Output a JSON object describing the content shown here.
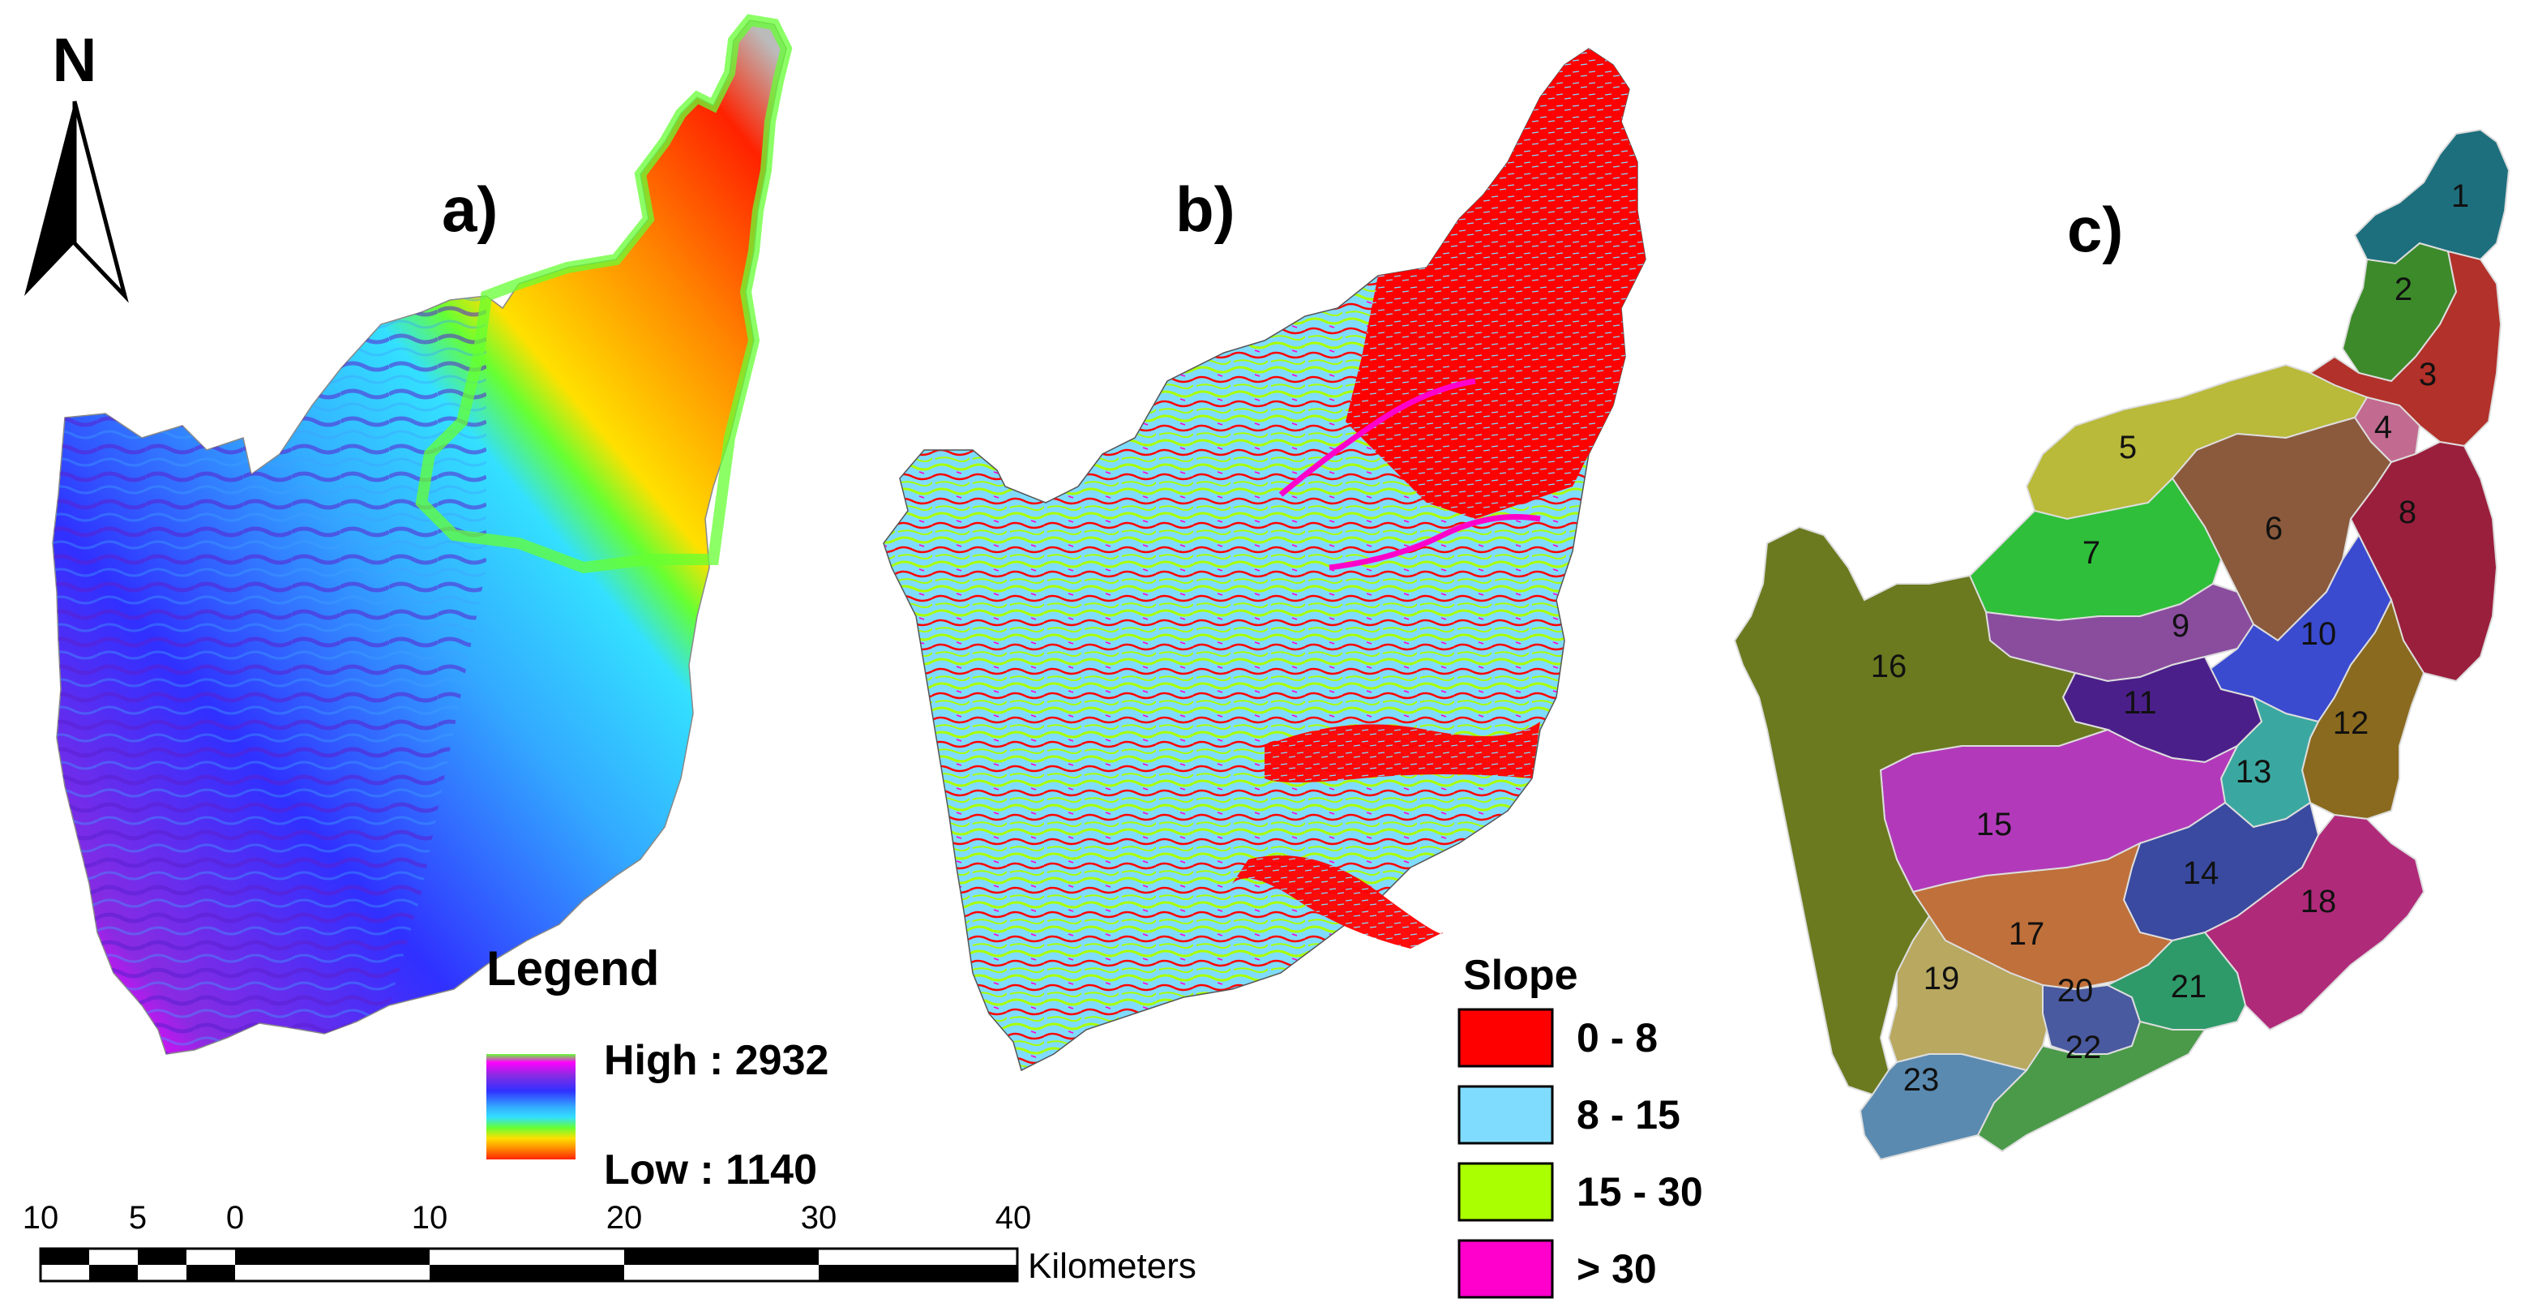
{
  "panels": {
    "a": {
      "label": "a)"
    },
    "b": {
      "label": "b)"
    },
    "c": {
      "label": "c)"
    }
  },
  "north_arrow": {
    "label": "N"
  },
  "elevation_legend": {
    "title": "Legend",
    "high_label": "High : 2932",
    "low_label": "Low : 1140",
    "ramp_colors": [
      "#ff00ff",
      "#8a2be2",
      "#3030ff",
      "#33aaff",
      "#33e0ff",
      "#66ff33",
      "#ffe000",
      "#ff8800",
      "#ff2200",
      "#bbbbbb"
    ]
  },
  "slope_legend": {
    "title": "Slope",
    "classes": [
      {
        "label": "0 - 8",
        "color": "#ff0000"
      },
      {
        "label": "8 - 15",
        "color": "#7fdcff"
      },
      {
        "label": "15 - 30",
        "color": "#aaff00"
      },
      {
        "label": "> 30",
        "color": "#ff00cc"
      }
    ]
  },
  "scale_bar": {
    "ticks": [
      "10",
      "5",
      "0",
      "10",
      "20",
      "30",
      "40"
    ],
    "unit": "Kilometers"
  },
  "subbasins": [
    {
      "id": "1",
      "color": "#1d6f7d"
    },
    {
      "id": "2",
      "color": "#3d8a2a"
    },
    {
      "id": "3",
      "color": "#b2312a"
    },
    {
      "id": "4",
      "color": "#c26a8f"
    },
    {
      "id": "5",
      "color": "#b9b93a"
    },
    {
      "id": "6",
      "color": "#8b5a3c"
    },
    {
      "id": "7",
      "color": "#2fbf3a"
    },
    {
      "id": "8",
      "color": "#9a1f3d"
    },
    {
      "id": "9",
      "color": "#8a4d9e"
    },
    {
      "id": "10",
      "color": "#3a4bd0"
    },
    {
      "id": "11",
      "color": "#4b1f8a"
    },
    {
      "id": "12",
      "color": "#8a6a1f"
    },
    {
      "id": "13",
      "color": "#3aa8a0"
    },
    {
      "id": "14",
      "color": "#3a4aa0"
    },
    {
      "id": "15",
      "color": "#b23aba"
    },
    {
      "id": "16",
      "color": "#6b7a1f"
    },
    {
      "id": "17",
      "color": "#c0703a"
    },
    {
      "id": "18",
      "color": "#b02a7a"
    },
    {
      "id": "19",
      "color": "#b8a860"
    },
    {
      "id": "20",
      "color": "#4a5aa0"
    },
    {
      "id": "21",
      "color": "#2e9a6a"
    },
    {
      "id": "22",
      "color": "#4a9a4a"
    },
    {
      "id": "23",
      "color": "#5a8ab0"
    }
  ]
}
